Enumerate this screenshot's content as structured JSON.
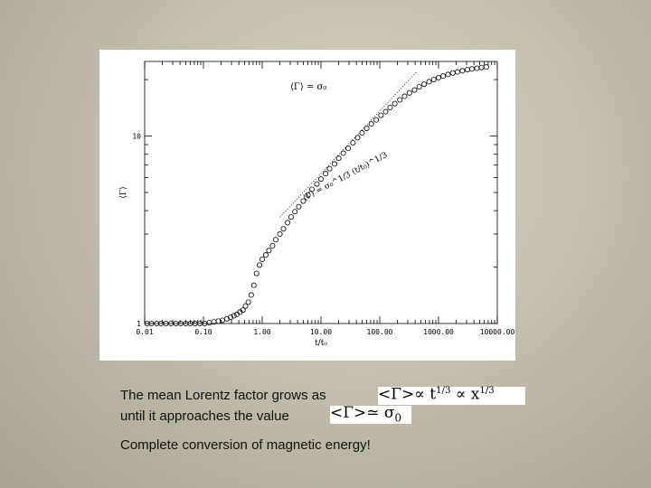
{
  "slide": {
    "line1": "The mean Lorentz factor grows as",
    "line2": "until it approaches the value",
    "line3": "Complete conversion of magnetic energy!",
    "formula1": {
      "lhs": "<Γ>∝ t",
      "exp1": "1/3",
      "mid": " ∝ x",
      "exp2": "1/3"
    },
    "formula2": {
      "lhs": "<Γ>≃ σ",
      "sub": "0"
    }
  },
  "chart_data": {
    "type": "scatter",
    "xlabel": "t/t₀",
    "ylabel": "⟨Γ⟩",
    "x_scale": "log",
    "y_scale": "log",
    "xlim": [
      0.01,
      10000
    ],
    "ylim": [
      1,
      25
    ],
    "x_ticks": [
      {
        "value": 0.01,
        "label": "0.01"
      },
      {
        "value": 0.1,
        "label": "0.10"
      },
      {
        "value": 1,
        "label": "1.00"
      },
      {
        "value": 10,
        "label": "10.00"
      },
      {
        "value": 100,
        "label": "100.00"
      },
      {
        "value": 1000,
        "label": "1000.00"
      },
      {
        "value": 10000,
        "label": "10000.00"
      }
    ],
    "y_ticks": [
      {
        "value": 1,
        "label": "1"
      },
      {
        "value": 10,
        "label": "10"
      }
    ],
    "annotations": [
      {
        "text": "⟨Γ⟩ = σ₀"
      },
      {
        "text": "⟨Γ⟩ = σ₀^1/3 (t/t₀)^1/3"
      }
    ],
    "series": [
      {
        "marker": "circle",
        "x": [
          0.011,
          0.013,
          0.016,
          0.019,
          0.023,
          0.028,
          0.034,
          0.041,
          0.05,
          0.06,
          0.072,
          0.087,
          0.105,
          0.126,
          0.15,
          0.18,
          0.21,
          0.25,
          0.29,
          0.33,
          0.37,
          0.42,
          0.47,
          0.52,
          0.58,
          0.65,
          0.72,
          0.8,
          0.9,
          1.0,
          1.15,
          1.3,
          1.5,
          1.7,
          2.0,
          2.3,
          2.7,
          3.1,
          3.6,
          4.2,
          5.0,
          6.0,
          7.0,
          8.5,
          10,
          12,
          14,
          17,
          20,
          24,
          29,
          35,
          42,
          50,
          60,
          72,
          87,
          105,
          126,
          150,
          180,
          220,
          265,
          320,
          390,
          470,
          570,
          690,
          830,
          1000,
          1200,
          1450,
          1750,
          2100,
          2550,
          3100,
          3700,
          4500,
          5400,
          6500
        ],
        "y": [
          1.0,
          1.0,
          1.0,
          1.0,
          1.0,
          1.0,
          1.0,
          1.0,
          1.0,
          1.0,
          1.0,
          1.0,
          1.0,
          1.01,
          1.02,
          1.03,
          1.04,
          1.06,
          1.08,
          1.1,
          1.12,
          1.15,
          1.18,
          1.24,
          1.3,
          1.42,
          1.6,
          1.85,
          2.05,
          2.2,
          2.32,
          2.45,
          2.6,
          2.8,
          3.0,
          3.2,
          3.45,
          3.7,
          3.95,
          4.2,
          4.5,
          4.85,
          5.2,
          5.55,
          5.9,
          6.3,
          6.7,
          7.1,
          7.6,
          8.1,
          8.6,
          9.2,
          9.8,
          10.4,
          11.0,
          11.6,
          12.2,
          12.9,
          13.5,
          14.2,
          14.9,
          15.6,
          16.3,
          17.0,
          17.6,
          18.3,
          18.9,
          19.5,
          20.0,
          20.5,
          20.9,
          21.3,
          21.7,
          22.0,
          22.3,
          22.6,
          22.8,
          23.0,
          23.2,
          23.35
        ]
      }
    ]
  }
}
